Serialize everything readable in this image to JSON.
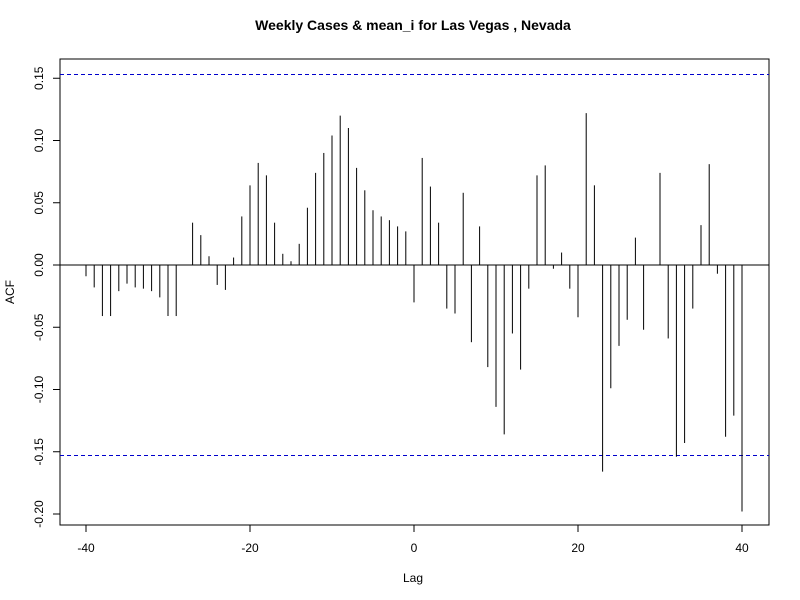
{
  "chart_data": {
    "type": "bar",
    "title": "Weekly Cases & mean_i for Las Vegas , Nevada",
    "xlabel": "Lag",
    "ylabel": "ACF",
    "xlim": [
      -40,
      40
    ],
    "ylim": [
      -0.2,
      0.15
    ],
    "x_ticks": [
      "-40",
      "-20",
      "0",
      "20",
      "40"
    ],
    "y_ticks": [
      "-0.20",
      "-0.15",
      "-0.10",
      "-0.05",
      "0.00",
      "0.05",
      "0.10",
      "0.15"
    ],
    "confidence_bound": 0.153,
    "confidence_color": "#0000CC",
    "bar_color": "#000000",
    "grid": false,
    "lags": [
      -40,
      -39,
      -38,
      -37,
      -36,
      -35,
      -34,
      -33,
      -32,
      -31,
      -30,
      -29,
      -28,
      -27,
      -26,
      -25,
      -24,
      -23,
      -22,
      -21,
      -20,
      -19,
      -18,
      -17,
      -16,
      -15,
      -14,
      -13,
      -12,
      -11,
      -10,
      -9,
      -8,
      -7,
      -6,
      -5,
      -4,
      -3,
      -2,
      -1,
      0,
      1,
      2,
      3,
      4,
      5,
      6,
      7,
      8,
      9,
      10,
      11,
      12,
      13,
      14,
      15,
      16,
      17,
      18,
      19,
      20,
      21,
      22,
      23,
      24,
      25,
      26,
      27,
      28,
      29,
      30,
      31,
      32,
      33,
      34,
      35,
      36,
      37,
      38,
      39,
      40
    ],
    "values": [
      -0.009,
      -0.018,
      -0.041,
      -0.041,
      -0.021,
      -0.015,
      -0.018,
      -0.019,
      -0.021,
      -0.026,
      -0.041,
      -0.041,
      0,
      0.034,
      0.024,
      0.007,
      -0.016,
      -0.02,
      0.006,
      0.039,
      0.064,
      0.082,
      0.072,
      0.034,
      0.009,
      0.003,
      0.017,
      0.046,
      0.074,
      0.09,
      0.104,
      0.12,
      0.11,
      0.078,
      0.06,
      0.044,
      0.039,
      0.036,
      0.031,
      0.027,
      -0.03,
      0.086,
      0.063,
      0.034,
      -0.035,
      -0.039,
      0.058,
      -0.062,
      0.031,
      -0.082,
      -0.114,
      -0.136,
      -0.055,
      -0.084,
      -0.019,
      0.072,
      0.08,
      -0.003,
      0.01,
      -0.019,
      -0.042,
      0.122,
      0.064,
      -0.166,
      -0.099,
      -0.065,
      -0.044,
      0.022,
      -0.052,
      0,
      0.074,
      -0.059,
      -0.154,
      -0.143,
      -0.035,
      0.032,
      0.081,
      -0.007,
      -0.138,
      -0.121,
      -0.198
    ]
  }
}
